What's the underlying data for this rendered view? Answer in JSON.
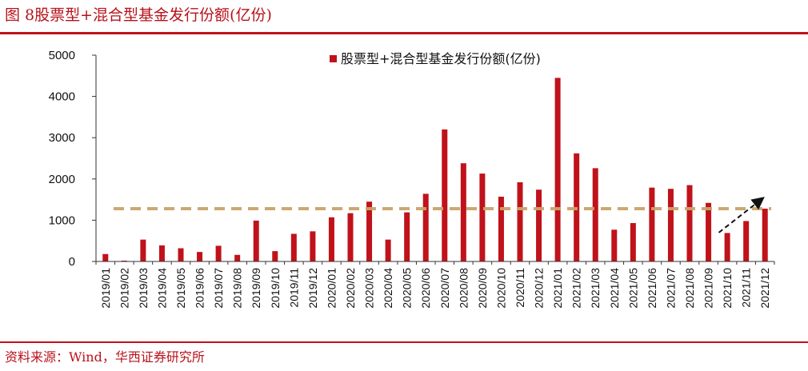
{
  "figure": {
    "title": "图 8股票型+混合型基金发行份额(亿份)",
    "source": "资料来源：Wind，华西证券研究所"
  },
  "colors": {
    "bar": "#c0121b",
    "reference_line": "#c9a46a",
    "rule": "#c0121b"
  },
  "chart_data": {
    "type": "bar",
    "title": "",
    "xlabel": "",
    "ylabel": "",
    "ylim": [
      0,
      5000
    ],
    "yticks": [
      0,
      1000,
      2000,
      3000,
      4000,
      5000
    ],
    "grid": false,
    "legend_position": "top-center",
    "categories": [
      "2019/01",
      "2019/02",
      "2019/03",
      "2019/04",
      "2019/05",
      "2019/06",
      "2019/07",
      "2019/08",
      "2019/09",
      "2019/10",
      "2019/11",
      "2019/12",
      "2020/01",
      "2020/02",
      "2020/03",
      "2020/04",
      "2020/05",
      "2020/06",
      "2020/07",
      "2020/08",
      "2020/09",
      "2020/10",
      "2020/11",
      "2020/12",
      "2021/01",
      "2021/02",
      "2021/03",
      "2021/04",
      "2021/05",
      "2021/06",
      "2021/07",
      "2021/08",
      "2021/09",
      "2021/10",
      "2021/11",
      "2021/12"
    ],
    "series": [
      {
        "name": "股票型+混合型基金发行份额(亿份)",
        "values": [
          180,
          20,
          530,
          390,
          320,
          230,
          380,
          160,
          990,
          250,
          670,
          730,
          1070,
          1170,
          1450,
          530,
          1190,
          1640,
          3200,
          2380,
          2130,
          1570,
          1920,
          1740,
          4450,
          2620,
          2260,
          770,
          930,
          1790,
          1760,
          1850,
          1420,
          690,
          980,
          1280
        ]
      }
    ],
    "annotations": [
      {
        "type": "reference_line",
        "style": "dashed",
        "y": 1280
      },
      {
        "type": "arrow",
        "style": "dashed",
        "from": {
          "x": "2021/09",
          "y": 700
        },
        "to": {
          "x": "2021/12",
          "y": 1520
        }
      }
    ]
  }
}
